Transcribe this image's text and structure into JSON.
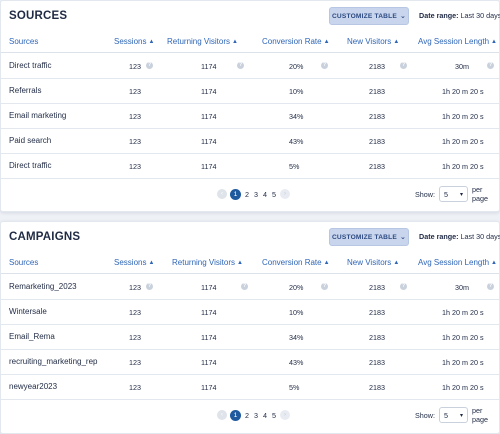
{
  "sources": {
    "title": "SOURCES",
    "customize_label": "CUSTOMIZE TABLE",
    "date_range_label": "Date range:",
    "date_range_value": "Last 30 days",
    "columns": [
      "Sources",
      "Sessions",
      "Returning Visitors",
      "Conversion Rate",
      "New Visitors",
      "Avg Session Length"
    ],
    "rows": [
      {
        "name": "Direct traffic",
        "sessions": "123",
        "returning": "1174",
        "conversion": "20%",
        "new": "2183",
        "avg": "30m"
      },
      {
        "name": "Referrals",
        "sessions": "123",
        "returning": "1174",
        "conversion": "10%",
        "new": "2183",
        "avg": "1h 20 m 20 s"
      },
      {
        "name": "Email marketing",
        "sessions": "123",
        "returning": "1174",
        "conversion": "34%",
        "new": "2183",
        "avg": "1h 20 m 20 s"
      },
      {
        "name": "Paid search",
        "sessions": "123",
        "returning": "1174",
        "conversion": "43%",
        "new": "2183",
        "avg": "1h 20 m 20 s"
      },
      {
        "name": "Direct traffic",
        "sessions": "123",
        "returning": "1174",
        "conversion": "5%",
        "new": "2183",
        "avg": "1h 20 m 20 s"
      }
    ],
    "pages": [
      "1",
      "2",
      "3",
      "4",
      "5"
    ],
    "show_label": "Show:",
    "per_page_value": "5",
    "per_page_label": "per page"
  },
  "campaigns": {
    "title": "CAMPAIGNS",
    "customize_label": "CUSTOMIZE TABLE",
    "date_range_label": "Date range:",
    "date_range_value": "Last 30 days",
    "columns": [
      "Sources",
      "Sessions",
      "Returning Visitors",
      "Conversion Rate",
      "New Visitors",
      "Avg Session Length"
    ],
    "rows": [
      {
        "name": "Remarketing_2023",
        "sessions": "123",
        "returning": "1174",
        "conversion": "20%",
        "new": "2183",
        "avg": "30m"
      },
      {
        "name": "Wintersale",
        "sessions": "123",
        "returning": "1174",
        "conversion": "10%",
        "new": "2183",
        "avg": "1h 20 m 20 s"
      },
      {
        "name": "Email_Rema",
        "sessions": "123",
        "returning": "1174",
        "conversion": "34%",
        "new": "2183",
        "avg": "1h 20 m 20 s"
      },
      {
        "name": "recruiting_marketing_rep",
        "sessions": "123",
        "returning": "1174",
        "conversion": "43%",
        "new": "2183",
        "avg": "1h 20 m 20 s"
      },
      {
        "name": "newyear2023",
        "sessions": "123",
        "returning": "1174",
        "conversion": "5%",
        "new": "2183",
        "avg": "1h 20 m 20 s"
      }
    ],
    "pages": [
      "1",
      "2",
      "3",
      "4",
      "5"
    ],
    "show_label": "Show:",
    "per_page_value": "5",
    "per_page_label": "per page"
  }
}
